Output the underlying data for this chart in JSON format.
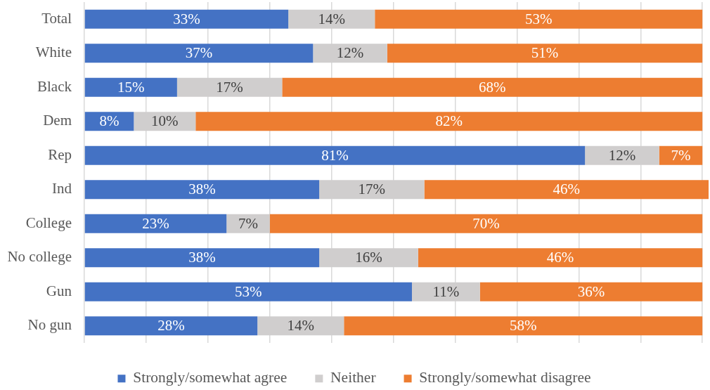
{
  "chart_data": {
    "type": "bar",
    "orientation": "horizontal",
    "stacked": true,
    "categories": [
      "Total",
      "White",
      "Black",
      "Dem",
      "Rep",
      "Ind",
      "College",
      "No college",
      "Gun",
      "No gun"
    ],
    "series": [
      {
        "name": "Strongly/somewhat agree",
        "color": "#4472c4",
        "values": [
          33,
          37,
          15,
          8,
          81,
          38,
          23,
          38,
          53,
          28
        ],
        "value_labels": [
          "33%",
          "37%",
          "15%",
          "8%",
          "81%",
          "38%",
          "23%",
          "38%",
          "53%",
          "28%"
        ]
      },
      {
        "name": "Neither",
        "color": "#d0cece",
        "values": [
          14,
          12,
          17,
          10,
          12,
          17,
          7,
          16,
          11,
          14
        ],
        "value_labels": [
          "14%",
          "12%",
          "17%",
          "10%",
          "12%",
          "17%",
          "7%",
          "16%",
          "11%",
          "14%"
        ]
      },
      {
        "name": "Strongly/somewhat disagree",
        "color": "#ed7d31",
        "values": [
          53,
          51,
          68,
          82,
          7,
          46,
          70,
          46,
          36,
          58
        ],
        "value_labels": [
          "53%",
          "51%",
          "68%",
          "82%",
          "7%",
          "46%",
          "70%",
          "46%",
          "36%",
          "58%"
        ]
      }
    ],
    "xlim": [
      0,
      101
    ],
    "xticks": [
      {
        "value": 0,
        "label": null
      },
      {
        "value": 10,
        "label": null
      },
      {
        "value": 20,
        "label": null
      },
      {
        "value": 30,
        "label": null
      },
      {
        "value": 40,
        "label": null
      },
      {
        "value": 50,
        "label": null
      },
      {
        "value": 60,
        "label": null
      },
      {
        "value": 70,
        "label": null
      },
      {
        "value": 80,
        "label": null
      },
      {
        "value": 90,
        "label": null
      },
      {
        "value": 100,
        "label": null
      }
    ],
    "tick_labels": "y",
    "grid": "x",
    "legend": "bottom"
  }
}
